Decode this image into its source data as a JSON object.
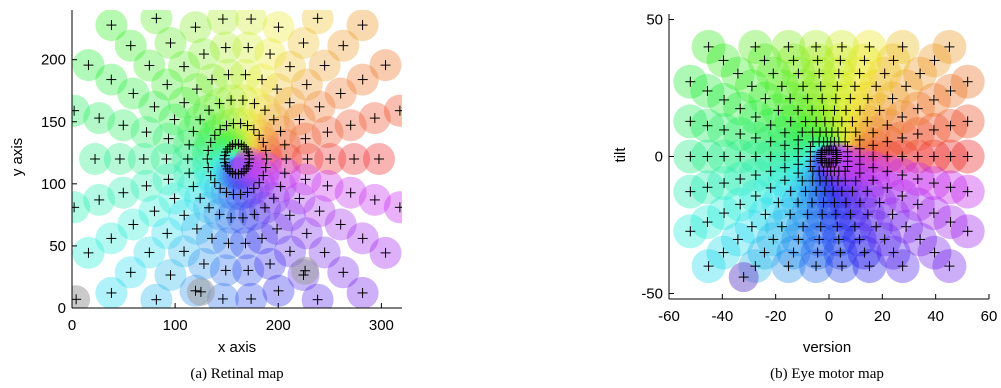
{
  "chart_data": [
    {
      "type": "scatter",
      "caption": "(a) Retinal map",
      "xlabel": "x axis",
      "ylabel": "y axis",
      "xlim": [
        0,
        320
      ],
      "ylim": [
        0,
        240
      ],
      "xticks": [
        0,
        100,
        200,
        300
      ],
      "yticks": [
        0,
        50,
        100,
        150,
        200
      ],
      "center": [
        160,
        120
      ],
      "radial_spokes": 26,
      "points_per_spoke": 10,
      "max_radius": 215,
      "highlighted_points": [
        [
          226,
          30
        ],
        [
          125,
          13
        ],
        [
          4,
          7
        ]
      ],
      "marker": "+",
      "color_encoding": "hue by direction from center"
    },
    {
      "type": "scatter",
      "caption": "(b) Eye motor map",
      "xlabel": "version",
      "ylabel": "tilt",
      "xlim": [
        -60,
        60
      ],
      "ylim": [
        -52,
        52
      ],
      "xticks": [
        -60,
        -40,
        -20,
        0,
        20,
        40,
        60
      ],
      "yticks": [
        -50,
        0,
        50
      ],
      "center": [
        0,
        0
      ],
      "radial_spokes": 26,
      "points_per_spoke": 10,
      "x_extent": 52,
      "y_extent": 40,
      "highlighted_points": [
        [
          -32,
          -44
        ]
      ],
      "marker": "+",
      "color_encoding": "hue by direction from center"
    }
  ]
}
